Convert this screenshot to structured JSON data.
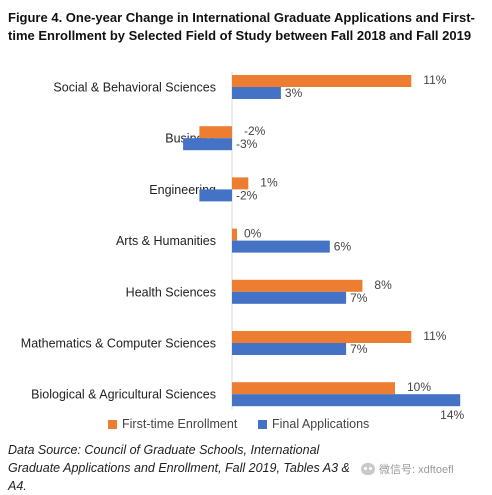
{
  "chart_data": {
    "type": "bar",
    "orientation": "horizontal",
    "title": "Figure 4. One-year Change in International Graduate Applications and First-time Enrollment by Selected Field of Study between Fall 2018 and Fall 2019",
    "categories": [
      "Social & Behavioral Sciences",
      "Business",
      "Engineering",
      "Arts & Humanities",
      "Health Sciences",
      "Mathematics & Computer Sciences",
      "Biological & Agricultural Sciences"
    ],
    "series": [
      {
        "name": "First-time Enrollment",
        "color": "#ED7D31",
        "values": [
          11,
          -2,
          1,
          0,
          8,
          11,
          10
        ],
        "labels": [
          "11%",
          "-2%",
          "1%",
          "0%",
          "8%",
          "11%",
          "10%"
        ]
      },
      {
        "name": "Final Applications",
        "color": "#4472C4",
        "values": [
          3,
          -3,
          -2,
          6,
          7,
          7,
          14
        ],
        "labels": [
          "3%",
          "-3%",
          "-2%",
          "6%",
          "7%",
          "7%",
          "14%"
        ]
      }
    ],
    "value_unit": "%",
    "xlim": [
      -3,
      14
    ],
    "grid": false,
    "legend_position": "bottom"
  },
  "source_note": "Data Source: Council of Graduate Schools, International Graduate Applications and Enrollment, Fall 2019, Tables A3 & A4.",
  "watermark": "微信号: xdftoefl"
}
